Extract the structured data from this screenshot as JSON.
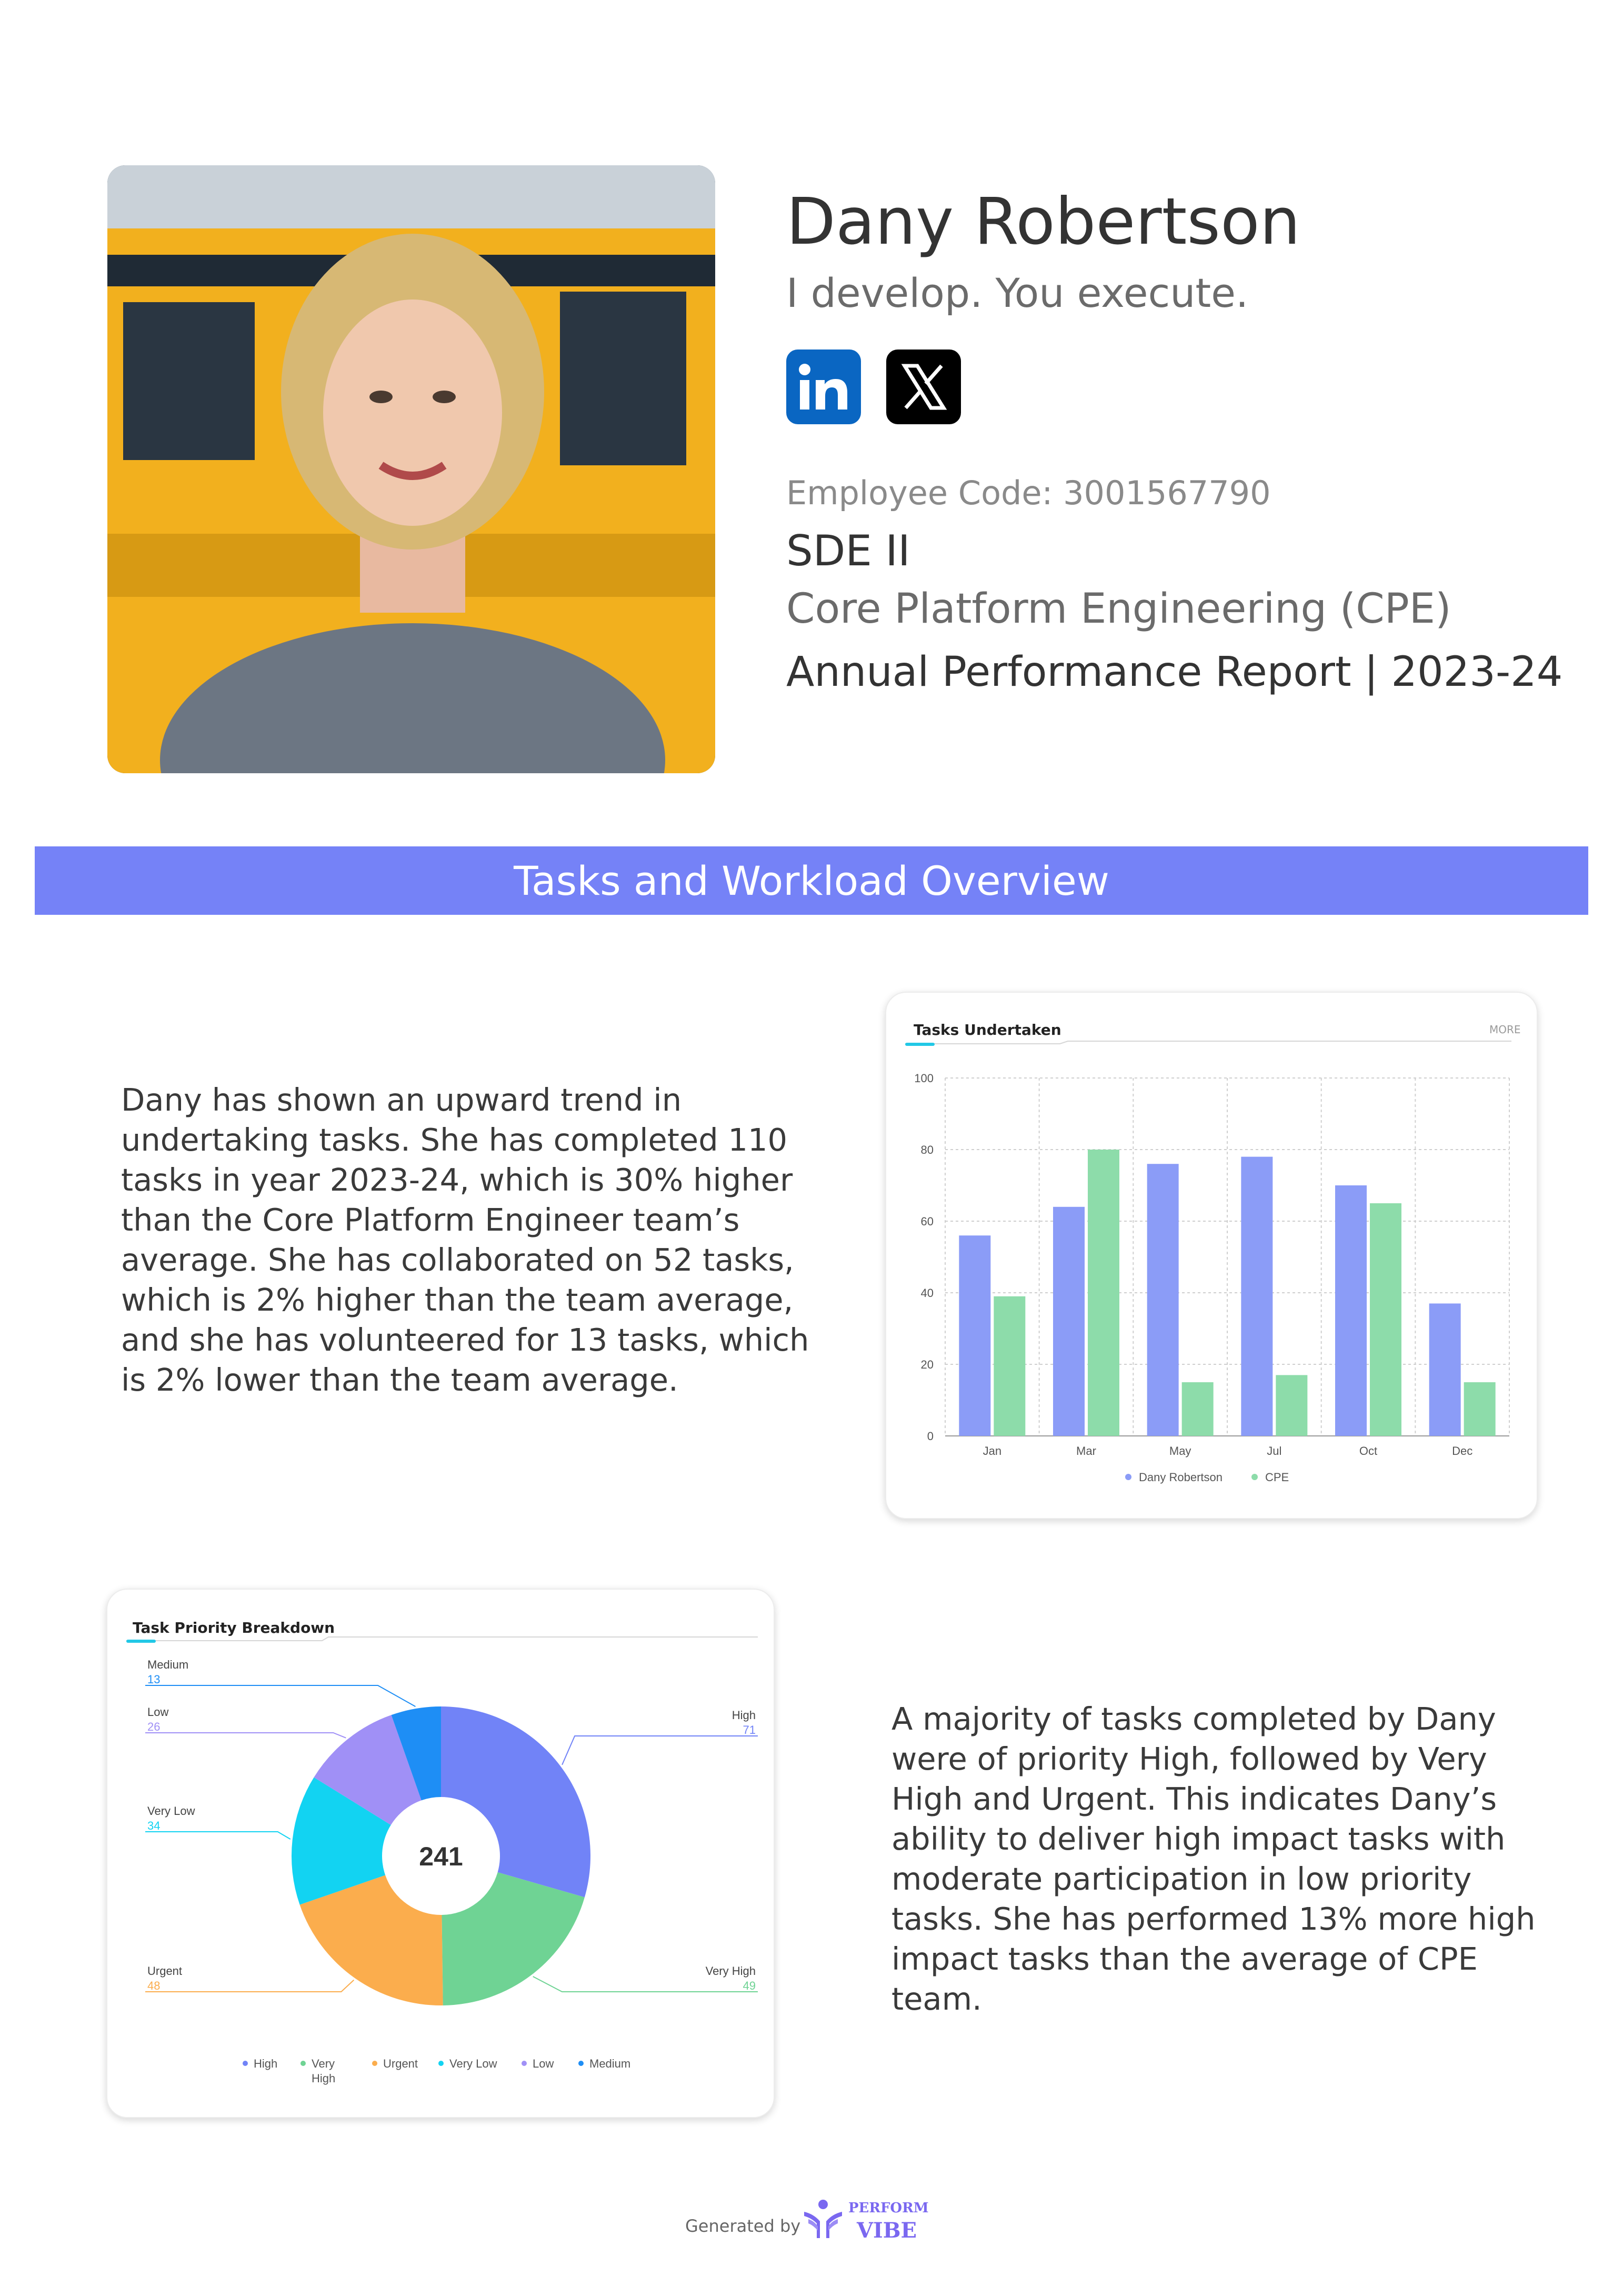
{
  "profile": {
    "name": "Dany Robertson",
    "tagline": "I develop. You execute.",
    "employee_code": "Employee Code: 3001567790",
    "role": "SDE II",
    "department": "Core Platform Engineering (CPE)",
    "report_title": "Annual Performance Report | 2023-24",
    "social": [
      {
        "icon": "linkedin-icon",
        "label": "in"
      },
      {
        "icon": "x-icon",
        "label": "X"
      }
    ]
  },
  "section": {
    "title": "Tasks and Workload Overview"
  },
  "paragraphs": {
    "tasks_summary": "Dany has shown an upward trend in undertaking tasks. She has completed 110 tasks in year 2023-24, which is 30% higher than the Core Platform Engineer team’s average. She has collaborated on 52 tasks, which is 2% higher than the team average, and she has volunteered for 13 tasks, which is 2% lower than the team average.",
    "priority_summary": "A majority of tasks completed by Dany were of priority High, followed by Very High and Urgent. This indicates Dany’s ability to deliver high impact tasks with moderate participation in low priority tasks. She has performed 13% more high impact tasks than the average of CPE team."
  },
  "colors": {
    "banner": "#7582f7",
    "series_dany": "#8b9cf7",
    "series_cpe": "#8ddcaa",
    "accent_underline": "#22c8e6"
  },
  "chart_data": [
    {
      "type": "bar",
      "title": "Tasks Undertaken",
      "more_label": "MORE",
      "categories": [
        "Jan",
        "Mar",
        "May",
        "Jul",
        "Oct",
        "Dec"
      ],
      "series": [
        {
          "name": "Dany Robertson",
          "values": [
            56,
            64,
            76,
            78,
            70,
            37
          ],
          "color": "#8b9cf7"
        },
        {
          "name": "CPE",
          "values": [
            39,
            80,
            15,
            17,
            65,
            15
          ],
          "color": "#8ddcaa"
        }
      ],
      "ylim": [
        0,
        100
      ],
      "yticks": [
        0,
        20,
        40,
        60,
        80,
        100
      ],
      "grid": true,
      "legend": "bottom-center"
    },
    {
      "type": "pie",
      "title": "Task Priority Breakdown",
      "total_label": "241",
      "slices": [
        {
          "label": "High",
          "value": 71,
          "color": "#7183f7"
        },
        {
          "label": "Very High",
          "value": 49,
          "color": "#6fd394"
        },
        {
          "label": "Urgent",
          "value": 48,
          "color": "#fbad4d"
        },
        {
          "label": "Very Low",
          "value": 34,
          "color": "#12d3f2"
        },
        {
          "label": "Low",
          "value": 26,
          "color": "#a090f6"
        },
        {
          "label": "Medium",
          "value": 13,
          "color": "#1e8ef5"
        }
      ],
      "legend": "bottom-center"
    }
  ],
  "footer": {
    "generated_by": "Generated by",
    "logo_word1": "PERFORM",
    "logo_word2": "VIBE"
  }
}
